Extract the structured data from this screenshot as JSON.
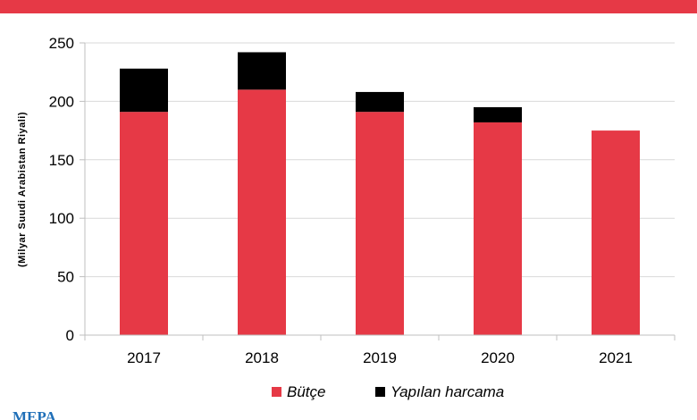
{
  "chart_data": {
    "type": "bar",
    "stacked": true,
    "categories": [
      "2017",
      "2018",
      "2019",
      "2020",
      "2021"
    ],
    "series": [
      {
        "name": "Bütçe",
        "values": [
          191,
          210,
          191,
          182,
          175
        ],
        "color": "#e63946"
      },
      {
        "name": "Yapılan harcama",
        "values": [
          37,
          32,
          17,
          13,
          0
        ],
        "color": "#000000"
      }
    ],
    "ylabel": "(Milyar Suudi Arabistan Riyali)",
    "ylim": [
      0,
      250
    ],
    "yticks": [
      0,
      50,
      100,
      150,
      200,
      250
    ],
    "grid": true,
    "legend_position": "bottom"
  },
  "colors": {
    "banner": "#e63946",
    "logo": "#1f6fb8"
  },
  "logo": {
    "text": "MEPA"
  }
}
